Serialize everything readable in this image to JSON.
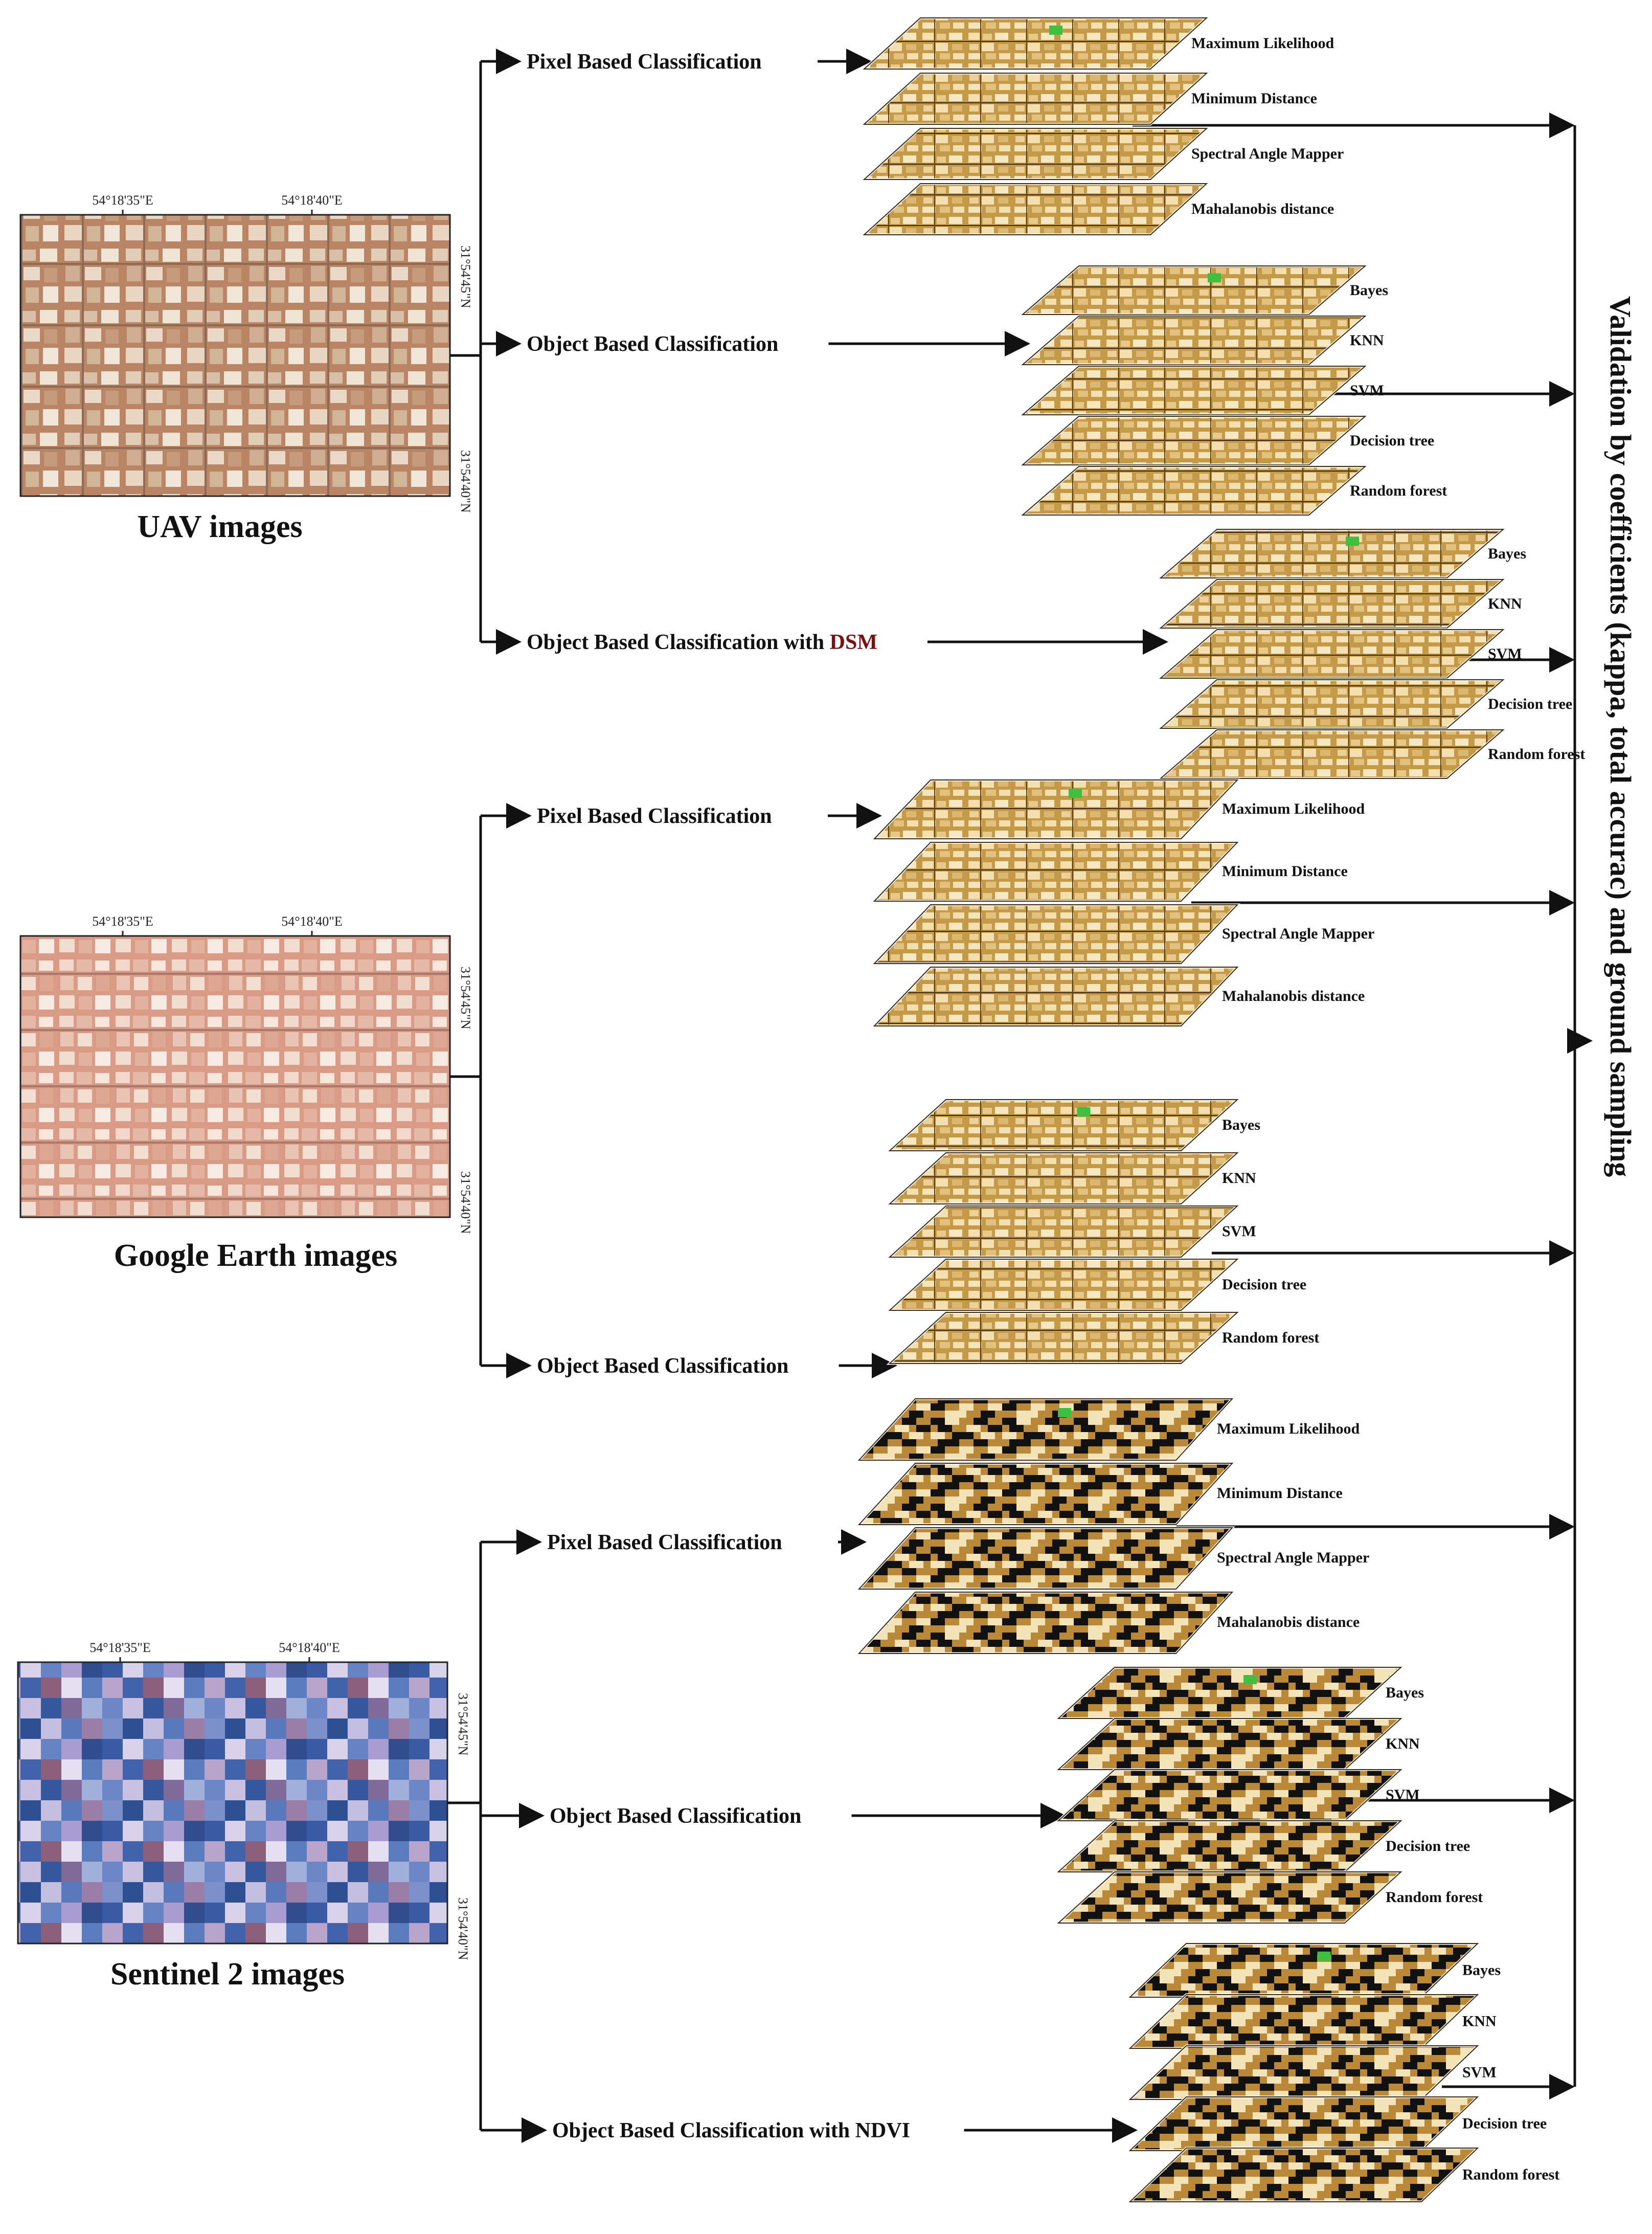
{
  "sources": [
    {
      "id": "uav",
      "caption": "UAV images",
      "coord_top": [
        "54°18'35\"E",
        "54°18'40\"E"
      ],
      "coord_right": [
        "31°54'45\"N",
        "31°54'40\"N"
      ],
      "theme": "uav"
    },
    {
      "id": "google",
      "caption": "Google Earth images",
      "coord_top": [
        "54°18'35\"E",
        "54°18'40\"E"
      ],
      "coord_right": [
        "31°54'45\"N",
        "31°54'40\"N"
      ],
      "theme": "google"
    },
    {
      "id": "sentinel",
      "caption": "Sentinel 2 images",
      "coord_top": [
        "54°18'35\"E",
        "54°18'40\"E"
      ],
      "coord_right": [
        "31°54'45\"N",
        "31°54'40\"N"
      ],
      "theme": "sentinel"
    }
  ],
  "branches": [
    {
      "source": "uav",
      "label": "Pixel Based Classification",
      "highlight": "",
      "style": "fine",
      "methods": [
        "Maximum Likelihood",
        "Minimum Distance",
        "Spectral Angle Mapper",
        "Mahalanobis distance"
      ]
    },
    {
      "source": "uav",
      "label": "Object Based Classification",
      "highlight": "",
      "style": "fine",
      "methods": [
        "Bayes",
        "KNN",
        "SVM",
        "Decision tree",
        "Random forest"
      ]
    },
    {
      "source": "uav",
      "label": "Object Based Classification with ",
      "highlight": "DSM",
      "style": "fine",
      "methods": [
        "Bayes",
        "KNN",
        "SVM",
        "Decision tree",
        "Random forest"
      ]
    },
    {
      "source": "google",
      "label": "Pixel Based Classification",
      "highlight": "",
      "style": "fine",
      "methods": [
        "Maximum Likelihood",
        "Minimum Distance",
        "Spectral Angle Mapper",
        "Mahalanobis distance"
      ]
    },
    {
      "source": "google",
      "label": "Object Based Classification",
      "highlight": "",
      "style": "fine",
      "methods": [
        "Bayes",
        "KNN",
        "SVM",
        "Decision tree",
        "Random forest"
      ]
    },
    {
      "source": "sentinel",
      "label": "Pixel Based Classification",
      "highlight": "",
      "style": "coarse",
      "methods": [
        "Maximum Likelihood",
        "Minimum Distance",
        "Spectral Angle Mapper",
        "Mahalanobis distance"
      ]
    },
    {
      "source": "sentinel",
      "label": "Object Based Classification",
      "highlight": "",
      "style": "coarse",
      "methods": [
        "Bayes",
        "KNN",
        "SVM",
        "Decision tree",
        "Random forest"
      ]
    },
    {
      "source": "sentinel",
      "label": "Object Based Classification with NDVI",
      "highlight": "",
      "style": "coarse",
      "methods": [
        "Bayes",
        "KNN",
        "SVM",
        "Decision tree",
        "Random forest"
      ]
    }
  ],
  "validation": {
    "label": "Validation by coefficients (kappa, total accurac) and ground sampling"
  },
  "colors": {
    "arrow": "#111111",
    "text": "#111111",
    "highlight": "#7a1010",
    "layer_light": "#f3dfb0",
    "layer_mid": "#c9a04e",
    "layer_dark": "#6b4a16",
    "layer_black": "#111111",
    "veg": "#3fbf3f"
  }
}
